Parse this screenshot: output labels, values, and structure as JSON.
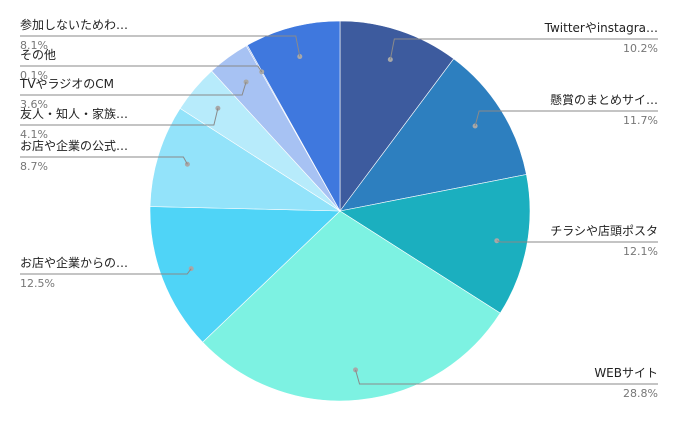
{
  "chart_data": {
    "type": "pie",
    "title": "",
    "legend": "none",
    "slices": [
      {
        "label": "Twitterやinstagra…",
        "percent_label": "10.2%",
        "value": 10.2,
        "color": "#3D5B9E"
      },
      {
        "label": "懸賞のまとめサイ…",
        "percent_label": "11.7%",
        "value": 11.7,
        "color": "#2D7FBF"
      },
      {
        "label": "チラシや店頭ポスタ",
        "percent_label": "12.1%",
        "value": 12.1,
        "color": "#1BAFBF"
      },
      {
        "label": "WEBサイト",
        "percent_label": "28.8%",
        "value": 28.8,
        "color": "#7DF2E2"
      },
      {
        "label": "お店や企業からの…",
        "percent_label": "12.5%",
        "value": 12.5,
        "color": "#4FD4F7"
      },
      {
        "label": "お店や企業の公式…",
        "percent_label": "8.7%",
        "value": 8.7,
        "color": "#93E3FA"
      },
      {
        "label": "友人・知人・家族…",
        "percent_label": "4.1%",
        "value": 4.1,
        "color": "#B7EBFB"
      },
      {
        "label": "TVやラジオのCM",
        "percent_label": "3.6%",
        "value": 3.6,
        "color": "#A7C2F3"
      },
      {
        "label": "その他",
        "percent_label": "0.1%",
        "value": 0.1,
        "color": "#8FB0EC"
      },
      {
        "label": "参加しないためわ…",
        "percent_label": "8.1%",
        "value": 8.1,
        "color": "#3F78DE"
      }
    ]
  }
}
